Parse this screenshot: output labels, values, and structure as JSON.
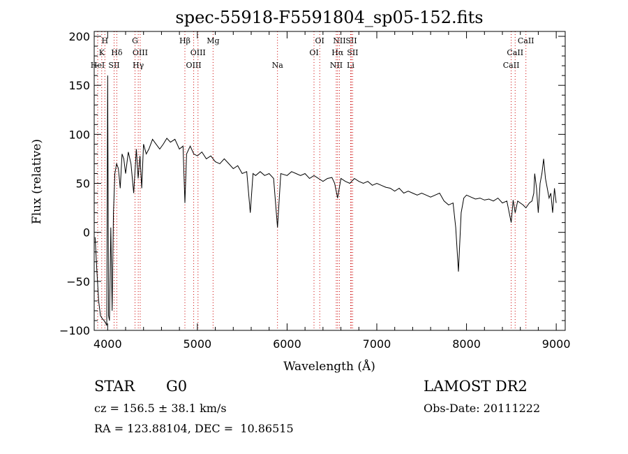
{
  "chart_data": {
    "type": "line",
    "title": "spec-55918-F5591804_sp05-152.fits",
    "xlabel": "Wavelength (Å)",
    "ylabel": "Flux (relative)",
    "xlim": [
      3850,
      9100
    ],
    "ylim": [
      -100,
      205
    ],
    "xticks": [
      4000,
      5000,
      6000,
      7000,
      8000,
      9000
    ],
    "yticks": [
      -100,
      -50,
      0,
      50,
      100,
      150,
      200
    ],
    "line_color": "#000000",
    "marker_color": "#cc0000",
    "series": [
      {
        "x": [
          3860,
          3880,
          3900,
          3920,
          3940,
          3960,
          3975,
          3990,
          4000,
          4010,
          4020,
          4035,
          4050,
          4065,
          4080,
          4100,
          4120,
          4140,
          4160,
          4180,
          4200,
          4230,
          4260,
          4290,
          4320,
          4340,
          4360,
          4380,
          4400,
          4430,
          4460,
          4500,
          4540,
          4580,
          4620,
          4660,
          4700,
          4750,
          4800,
          4840,
          4861,
          4880,
          4920,
          4960,
          5000,
          5050,
          5100,
          5150,
          5200,
          5250,
          5300,
          5350,
          5400,
          5450,
          5500,
          5550,
          5590,
          5620,
          5650,
          5700,
          5750,
          5800,
          5850,
          5893,
          5930,
          6000,
          6050,
          6100,
          6150,
          6200,
          6250,
          6300,
          6350,
          6400,
          6450,
          6500,
          6530,
          6563,
          6600,
          6650,
          6700,
          6750,
          6800,
          6850,
          6900,
          6950,
          7000,
          7050,
          7100,
          7150,
          7200,
          7250,
          7300,
          7350,
          7400,
          7450,
          7500,
          7550,
          7600,
          7650,
          7700,
          7750,
          7800,
          7850,
          7880,
          7910,
          7940,
          7970,
          8000,
          8050,
          8100,
          8150,
          8200,
          8250,
          8300,
          8350,
          8400,
          8450,
          8498,
          8520,
          8542,
          8570,
          8600,
          8630,
          8662,
          8700,
          8730,
          8750,
          8760,
          8780,
          8800,
          8820,
          8840,
          8860,
          8880,
          8900,
          8920,
          8940,
          8960,
          8980,
          9000
        ],
        "y": [
          -5,
          -40,
          -70,
          -85,
          -88,
          -90,
          -92,
          -95,
          160,
          -85,
          -90,
          5,
          -80,
          20,
          60,
          70,
          65,
          45,
          80,
          75,
          60,
          82,
          70,
          40,
          85,
          55,
          78,
          45,
          90,
          80,
          85,
          95,
          90,
          85,
          90,
          96,
          92,
          95,
          85,
          88,
          30,
          80,
          88,
          80,
          78,
          82,
          75,
          78,
          72,
          70,
          75,
          70,
          65,
          68,
          60,
          62,
          20,
          60,
          58,
          62,
          58,
          60,
          55,
          5,
          60,
          58,
          62,
          60,
          58,
          60,
          55,
          58,
          55,
          52,
          55,
          56,
          50,
          35,
          55,
          52,
          50,
          55,
          52,
          50,
          52,
          48,
          50,
          48,
          46,
          45,
          42,
          45,
          40,
          42,
          40,
          38,
          40,
          38,
          36,
          38,
          40,
          32,
          28,
          30,
          5,
          -40,
          20,
          35,
          38,
          36,
          34,
          35,
          33,
          34,
          32,
          35,
          30,
          32,
          10,
          33,
          20,
          32,
          30,
          28,
          25,
          30,
          32,
          40,
          60,
          45,
          20,
          50,
          60,
          75,
          55,
          45,
          35,
          40,
          20,
          45,
          30
        ]
      }
    ],
    "line_markers": [
      {
        "label": "H",
        "x": 3969,
        "row": 0
      },
      {
        "label": "K",
        "x": 3934,
        "row": 1
      },
      {
        "label": "HeI",
        "x": 3889,
        "row": 2
      },
      {
        "label": "Hδ",
        "x": 4102,
        "row": 1
      },
      {
        "label": "SII",
        "x": 4072,
        "row": 2
      },
      {
        "label": "G",
        "x": 4305,
        "row": 0
      },
      {
        "label": "OIII",
        "x": 4363,
        "row": 1
      },
      {
        "label": "Hγ",
        "x": 4341,
        "row": 2
      },
      {
        "label": "Hβ",
        "x": 4861,
        "row": 0
      },
      {
        "label": "OIII",
        "x": 5007,
        "row": 1
      },
      {
        "label": "OIII",
        "x": 4959,
        "row": 2
      },
      {
        "label": "Mg",
        "x": 5175,
        "row": 0
      },
      {
        "label": "Na",
        "x": 5893,
        "row": 2
      },
      {
        "label": "OI",
        "x": 6364,
        "row": 0
      },
      {
        "label": "OI",
        "x": 6300,
        "row": 1
      },
      {
        "label": "NII",
        "x": 6583,
        "row": 0
      },
      {
        "label": "SII",
        "x": 6716,
        "row": 0
      },
      {
        "label": "Hα",
        "x": 6563,
        "row": 1
      },
      {
        "label": "SII",
        "x": 6731,
        "row": 1
      },
      {
        "label": "NII",
        "x": 6548,
        "row": 2
      },
      {
        "label": "Li",
        "x": 6708,
        "row": 2
      },
      {
        "label": "CaII",
        "x": 8662,
        "row": 0
      },
      {
        "label": "CaII",
        "x": 8542,
        "row": 1
      },
      {
        "label": "CaII",
        "x": 8498,
        "row": 2
      }
    ]
  },
  "info": {
    "object_class": "STAR",
    "subclass": "G0",
    "survey": "LAMOST DR2",
    "cz": "cz = 156.5 ± 38.1 km/s",
    "obs_date": "Obs-Date: 20111222",
    "coords": "RA = 123.88104, DEC =  10.86515"
  }
}
